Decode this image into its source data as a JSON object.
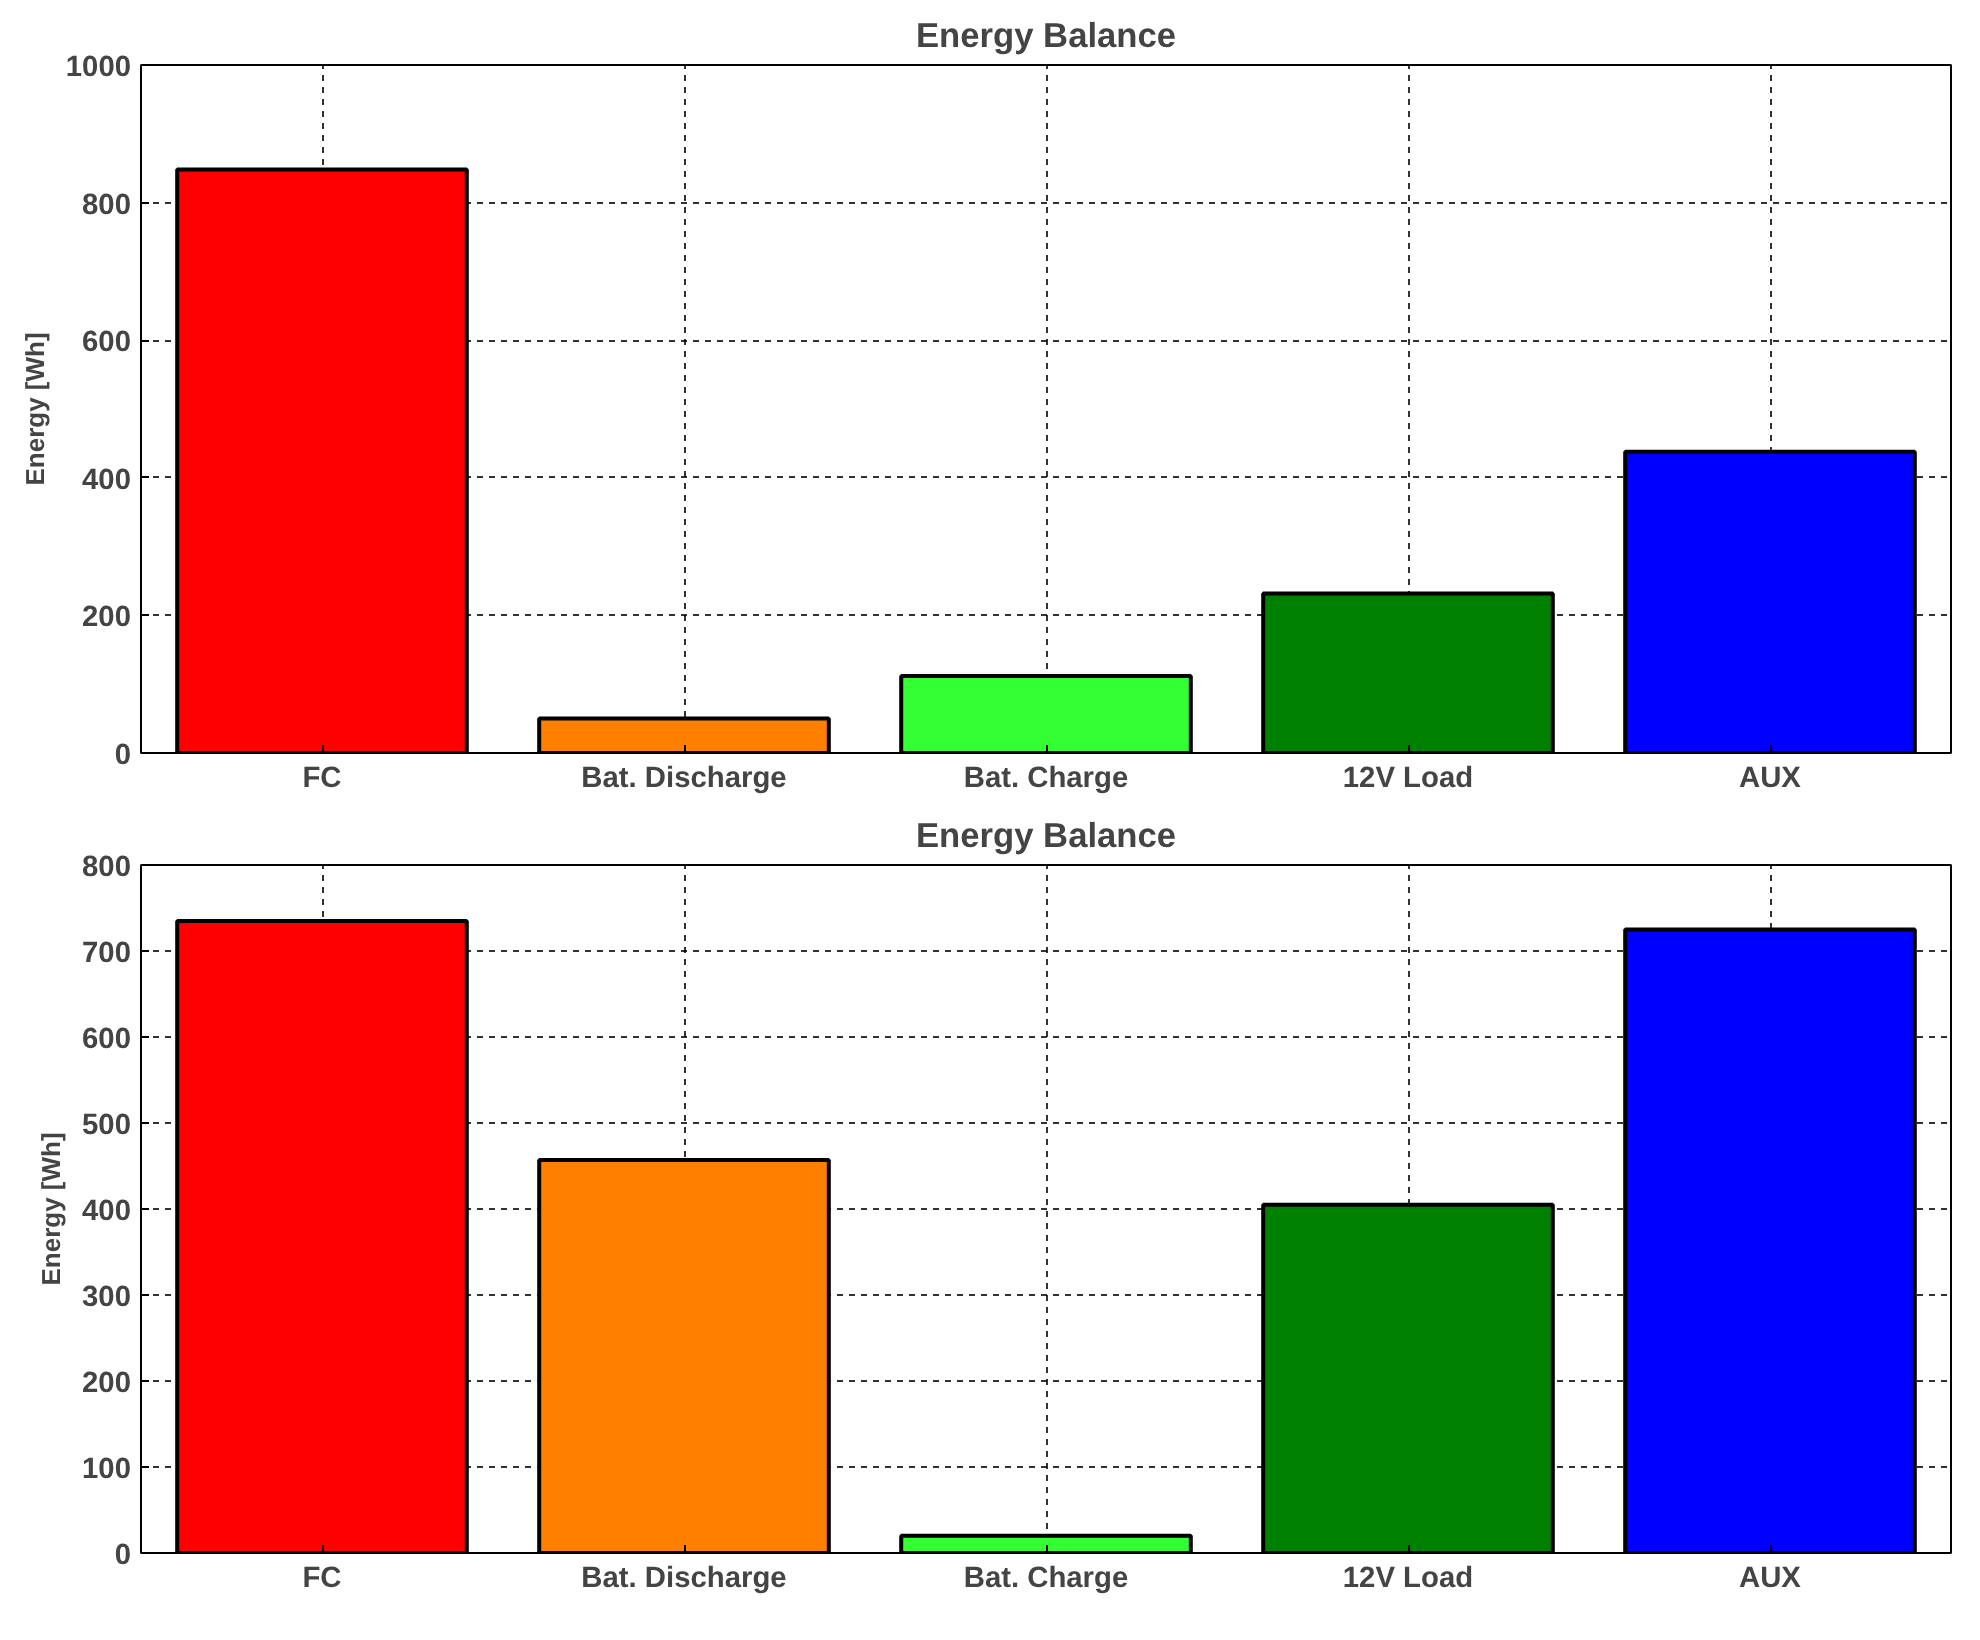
{
  "chart_data": [
    {
      "type": "bar",
      "title": "Energy Balance",
      "ylabel": "Energy [Wh]",
      "categories": [
        "FC",
        "Bat. Discharge",
        "Bat. Charge",
        "12V Load",
        "AUX"
      ],
      "values": [
        848,
        50,
        112,
        232,
        438
      ],
      "colors": [
        "#ff0000",
        "#ff8000",
        "#33ff33",
        "#008000",
        "#0000ff"
      ],
      "ylim": [
        0,
        1000
      ],
      "yticks": [
        0,
        200,
        400,
        600,
        800,
        1000
      ],
      "grid": true
    },
    {
      "type": "bar",
      "title": "Energy Balance",
      "ylabel": "Energy [Wh]",
      "categories": [
        "FC",
        "Bat. Discharge",
        "Bat. Charge",
        "12V Load",
        "AUX"
      ],
      "values": [
        735,
        457,
        20,
        405,
        725
      ],
      "colors": [
        "#ff0000",
        "#ff8000",
        "#33ff33",
        "#008000",
        "#0000ff"
      ],
      "ylim": [
        0,
        800
      ],
      "yticks": [
        0,
        100,
        200,
        300,
        400,
        500,
        600,
        700,
        800
      ],
      "grid": true
    }
  ]
}
